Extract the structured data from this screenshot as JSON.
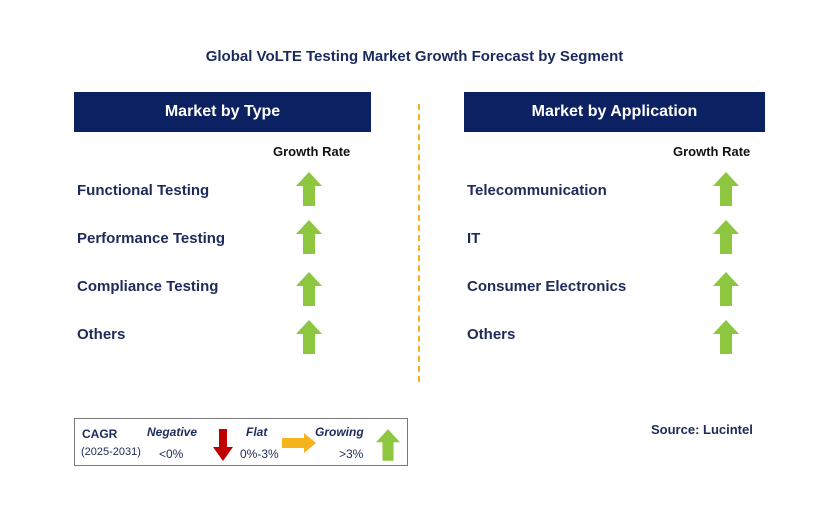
{
  "title": "Global VoLTE Testing Market Growth Forecast by Segment",
  "left_panel": {
    "header": "Market by Type",
    "growth_label": "Growth Rate",
    "items": [
      {
        "label": "Functional Testing",
        "trend": "growing"
      },
      {
        "label": "Performance Testing",
        "trend": "growing"
      },
      {
        "label": "Compliance Testing",
        "trend": "growing"
      },
      {
        "label": "Others",
        "trend": "growing"
      }
    ]
  },
  "right_panel": {
    "header": "Market by Application",
    "growth_label": "Growth Rate",
    "items": [
      {
        "label": "Telecommunication",
        "trend": "growing"
      },
      {
        "label": "IT",
        "trend": "growing"
      },
      {
        "label": "Consumer Electronics",
        "trend": "growing"
      },
      {
        "label": "Others",
        "trend": "growing"
      }
    ]
  },
  "legend": {
    "cagr_label": "CAGR",
    "period": "(2025-2031)",
    "negative_label": "Negative",
    "negative_range": "<0%",
    "flat_label": "Flat",
    "flat_range": "0%-3%",
    "growing_label": "Growing",
    "growing_range": ">3%"
  },
  "source": "Source: Lucintel",
  "colors": {
    "header_bg": "#0b2161",
    "growing": "#8dc63f",
    "negative": "#c00000",
    "flat": "#f5b31e",
    "divider": "#f5b31e"
  }
}
